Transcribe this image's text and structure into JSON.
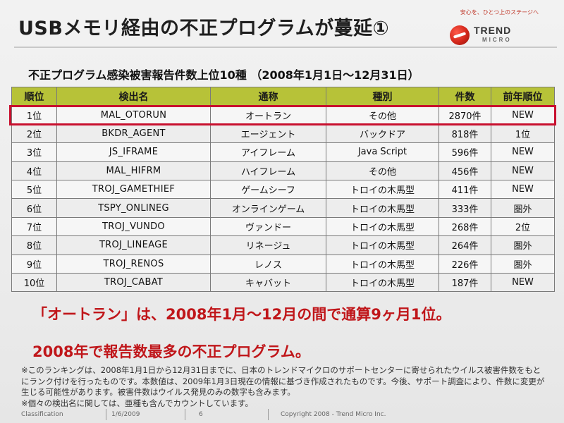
{
  "header": {
    "title": "USBメモリ経由の不正プログラムが蔓延①",
    "tagline": "安心を、ひとつ上のステージへ",
    "logo_name": "TREND",
    "logo_sub": "MICRO"
  },
  "subtitle": "不正プログラム感染被害報告件数上位10種 （2008年1月1日～12月31日）",
  "table": {
    "columns": [
      "順位",
      "検出名",
      "通称",
      "種別",
      "件数",
      "前年順位"
    ],
    "rows": [
      {
        "rank": "1位",
        "name": "MAL_OTORUN",
        "alias": "オートラン",
        "type": "その他",
        "count": "2870件",
        "prev": "NEW"
      },
      {
        "rank": "2位",
        "name": "BKDR_AGENT",
        "alias": "エージェント",
        "type": "バックドア",
        "count": "818件",
        "prev": "1位"
      },
      {
        "rank": "3位",
        "name": "JS_IFRAME",
        "alias": "アイフレーム",
        "type": "Java Script",
        "count": "596件",
        "prev": "NEW"
      },
      {
        "rank": "4位",
        "name": "MAL_HIFRM",
        "alias": "ハイフレーム",
        "type": "その他",
        "count": "456件",
        "prev": "NEW"
      },
      {
        "rank": "5位",
        "name": "TROJ_GAMETHIEF",
        "alias": "ゲームシーフ",
        "type": "トロイの木馬型",
        "count": "411件",
        "prev": "NEW"
      },
      {
        "rank": "6位",
        "name": "TSPY_ONLINEG",
        "alias": "オンラインゲーム",
        "type": "トロイの木馬型",
        "count": "333件",
        "prev": "圏外"
      },
      {
        "rank": "7位",
        "name": "TROJ_VUNDO",
        "alias": "ヴァンドー",
        "type": "トロイの木馬型",
        "count": "268件",
        "prev": "2位"
      },
      {
        "rank": "8位",
        "name": "TROJ_LINEAGE",
        "alias": "リネージュ",
        "type": "トロイの木馬型",
        "count": "264件",
        "prev": "圏外"
      },
      {
        "rank": "9位",
        "name": "TROJ_RENOS",
        "alias": "レノス",
        "type": "トロイの木馬型",
        "count": "226件",
        "prev": "圏外"
      },
      {
        "rank": "10位",
        "name": "TROJ_CABAT",
        "alias": "キャバット",
        "type": "トロイの木馬型",
        "count": "187件",
        "prev": "NEW"
      }
    ]
  },
  "notes": {
    "line1": "「オートラン」は、2008年1月～12月の間で通算9ヶ月1位。",
    "line2": "2008年で報告数最多の不正プログラム。"
  },
  "footnote": {
    "text1": "※このランキングは、2008年1月1日から12月31日までに、日本のトレンドマイクロのサポートセンターに寄せられたウイルス被害件数をもとにランク付けを行ったものです。本数値は、2009年1月3日現在の情報に基づき作成されたものです。今後、サポート調査により、件数に変更が生じる可能性があります。被害件数はウイルス発見のみの数字も含みます。",
    "text2": "※個々の検出名に関しては、亜種も含んでカウントしています。"
  },
  "footer": {
    "classification": "Classification",
    "date": "1/6/2009",
    "page": "6",
    "copyright": "Copyright 2008 - Trend Micro Inc."
  },
  "colors": {
    "header_green": "#b7c238",
    "highlight_red": "#c8102e",
    "note_red": "#c0161a"
  }
}
